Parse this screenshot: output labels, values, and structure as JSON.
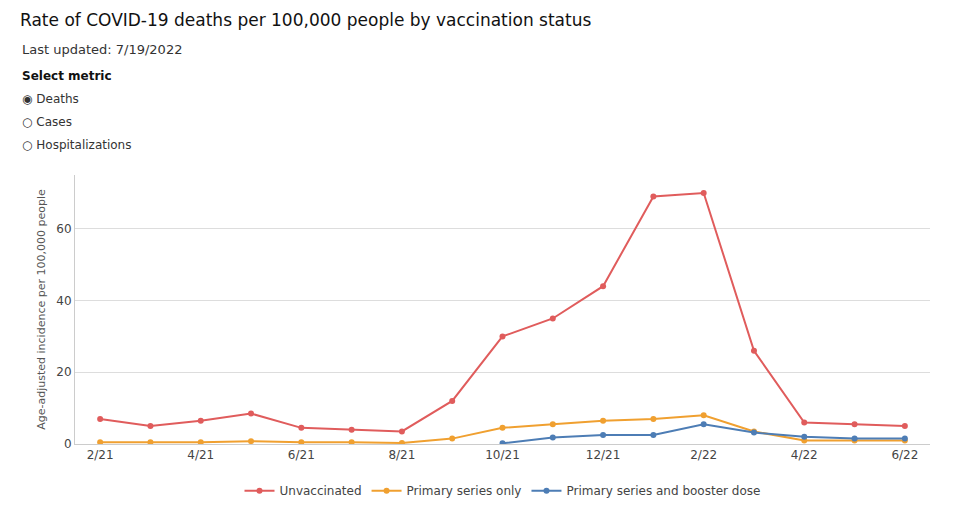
{
  "chart_data": {
    "type": "line",
    "title": "Rate of COVID-19 deaths per 100,000 people by vaccination status",
    "subtitle": "Last updated: 7/19/2022",
    "annotations": [
      "Select metric",
      "◉ Deaths",
      "○ Cases",
      "○ Hospitalizations"
    ],
    "y_label": "Age-adjusted incidence per 100,000 people",
    "categories": [
      "2/21",
      null,
      "4/21",
      null,
      "6/21",
      null,
      "8/21",
      null,
      "10/21",
      null,
      "12/21",
      null,
      "2/22",
      null,
      "4/22",
      null,
      "6/22"
    ],
    "series": [
      {
        "name": "Unvaccinated",
        "color": "#e05c5c",
        "values": [
          7.0,
          5.0,
          6.5,
          8.5,
          4.5,
          4.0,
          3.5,
          12.0,
          30.0,
          35.0,
          44.0,
          69.0,
          70.0,
          26.0,
          6.0,
          5.5,
          5.0
        ]
      },
      {
        "name": "Primary series only",
        "color": "#f0a030",
        "values": [
          0.5,
          0.5,
          0.5,
          0.8,
          0.5,
          0.5,
          0.3,
          1.5,
          4.5,
          5.5,
          6.5,
          7.0,
          8.0,
          3.5,
          1.0,
          1.0,
          1.0
        ]
      },
      {
        "name": "Primary series and booster dose",
        "color": "#4d7db5",
        "values": [
          null,
          null,
          null,
          null,
          null,
          null,
          null,
          null,
          0.2,
          1.8,
          2.5,
          2.5,
          5.5,
          3.2,
          2.0,
          1.5,
          1.5
        ]
      }
    ],
    "ylim": [
      0,
      75
    ],
    "yticks": [
      0,
      20,
      40,
      60
    ],
    "grid": true,
    "legend": "bottom",
    "marker": "circle"
  }
}
